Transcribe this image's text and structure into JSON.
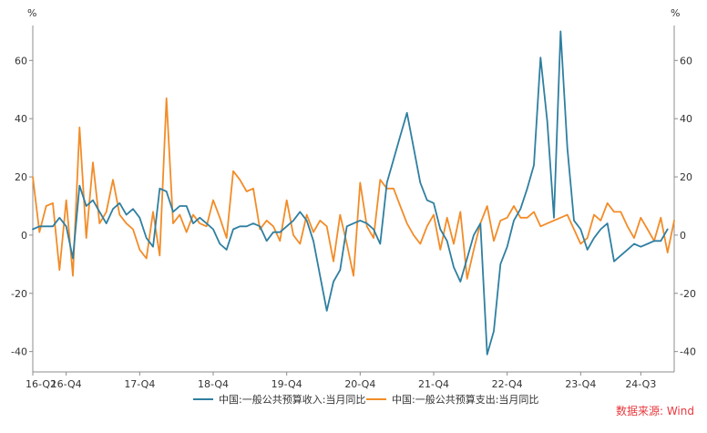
{
  "chart_data": {
    "type": "line",
    "unit_left": "%",
    "unit_right": "%",
    "ylim": [
      -47,
      72
    ],
    "y_ticks": [
      60,
      40,
      20,
      0,
      -20,
      -40
    ],
    "y_tick_labels_left": [
      "60",
      "40",
      "20",
      "0",
      "-20",
      "-40"
    ],
    "y_tick_labels_right": [
      "60",
      "40",
      "20",
      "0",
      "-20",
      "-40"
    ],
    "x_ticks": [
      {
        "index": 0,
        "label": "16-Q2"
      },
      {
        "index": 5,
        "label": "16-Q4"
      },
      {
        "index": 16,
        "label": "17-Q4"
      },
      {
        "index": 27,
        "label": "18-Q4"
      },
      {
        "index": 38,
        "label": "19-Q4"
      },
      {
        "index": 49,
        "label": "20-Q4"
      },
      {
        "index": 60,
        "label": "21-Q4"
      },
      {
        "index": 71,
        "label": "22-Q4"
      },
      {
        "index": 82,
        "label": "23-Q4"
      },
      {
        "index": 91,
        "label": "24-Q3"
      }
    ],
    "grid": false,
    "legend_position": "bottom",
    "series": [
      {
        "name": "中国:一般公共预算收入:当月同比",
        "color": "#2f7fa1",
        "values": [
          2,
          3,
          3,
          3,
          6,
          3,
          -8,
          17,
          10,
          12,
          8,
          4,
          9,
          11,
          7,
          9,
          6,
          -1,
          -4,
          16,
          15,
          8,
          10,
          10,
          4,
          6,
          4,
          2,
          -3,
          -5,
          2,
          3,
          3,
          4,
          3,
          -2,
          1,
          1,
          3,
          5,
          8,
          5,
          -2,
          -14,
          -26,
          -16,
          -12,
          3,
          4,
          5,
          4,
          2,
          -3,
          18,
          26,
          34,
          42,
          30,
          18,
          12,
          11,
          2,
          -2,
          -11,
          -16,
          -8,
          0,
          4,
          -41,
          -33,
          -10,
          -4,
          5,
          9,
          16,
          24,
          61,
          39,
          6,
          70,
          30,
          5,
          2,
          -5,
          -1,
          2,
          4,
          -9,
          -7,
          -5,
          -3,
          -4,
          -3,
          -2,
          -2,
          2
        ]
      },
      {
        "name": "中国:一般公共预算支出:当月同比",
        "color": "#f28c28",
        "values": [
          20,
          1,
          10,
          11,
          -12,
          12,
          -14,
          37,
          -1,
          25,
          4,
          8,
          19,
          7,
          4,
          2,
          -5,
          -8,
          8,
          -7,
          47,
          4,
          7,
          1,
          7,
          4,
          3,
          12,
          6,
          -1,
          22,
          19,
          15,
          16,
          2,
          5,
          3,
          -2,
          12,
          0,
          -3,
          7,
          1,
          5,
          3,
          -9,
          7,
          -3,
          -14,
          18,
          3,
          -1,
          19,
          16,
          16,
          10,
          4,
          0,
          -3,
          3,
          7,
          -5,
          6,
          -3,
          8,
          -15,
          -5,
          4,
          10,
          -2,
          5,
          6,
          10,
          6,
          6,
          8,
          3,
          4,
          5,
          6,
          7,
          2,
          -3,
          -1,
          7,
          5,
          11,
          8,
          8,
          3,
          -1,
          6,
          2,
          -2,
          6,
          -6,
          5
        ]
      }
    ],
    "source": "数据来源: Wind"
  }
}
